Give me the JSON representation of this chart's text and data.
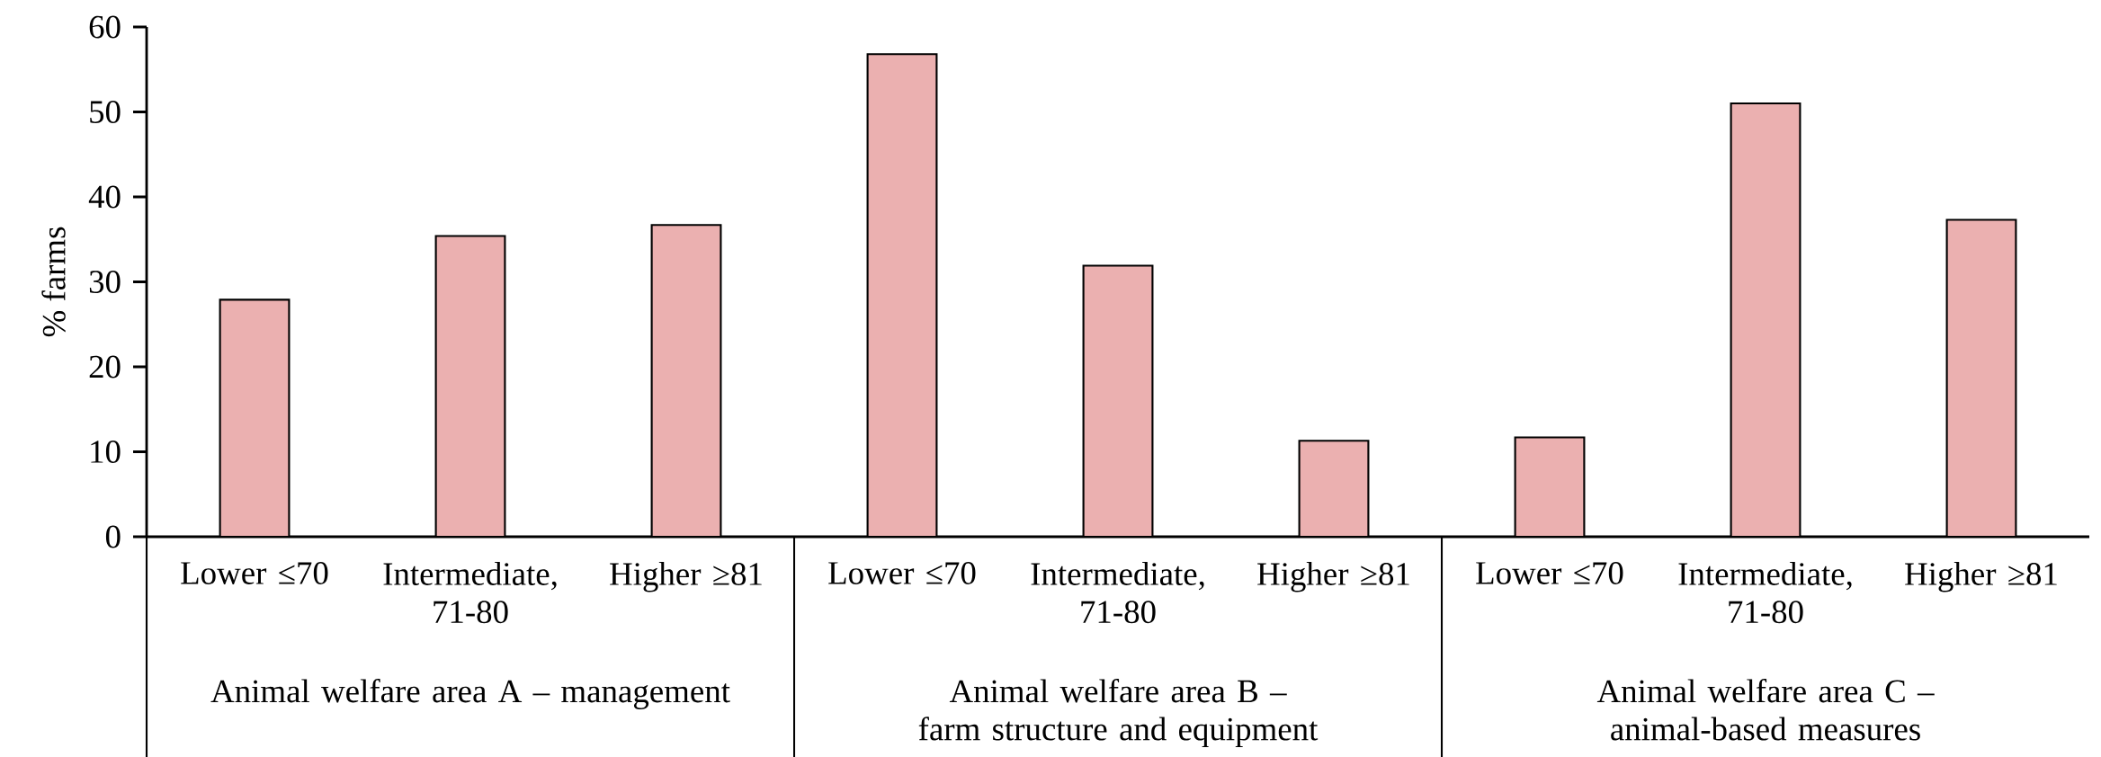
{
  "chart_data": {
    "type": "bar",
    "ylabel": "% farms",
    "categories": [
      "Lower ≤70",
      "Intermediate, 71-80",
      "Higher ≥81",
      "Lower ≤70",
      "Intermediate, 71-80",
      "Higher ≥81",
      "Lower ≤70",
      "Intermediate, 71-80",
      "Higher ≥81"
    ],
    "values": [
      27.9,
      35.4,
      36.7,
      56.8,
      31.9,
      11.3,
      11.7,
      51.0,
      37.3
    ],
    "color": "#ebb0b0",
    "ylim": [
      0,
      60
    ],
    "yticks": [
      0,
      10,
      20,
      30,
      40,
      50,
      60
    ],
    "annotations": [
      "Animal welfare area A – management",
      "Animal welfare area B – farm structure and equipment",
      "Animal welfare area C – animal-based measures"
    ]
  }
}
